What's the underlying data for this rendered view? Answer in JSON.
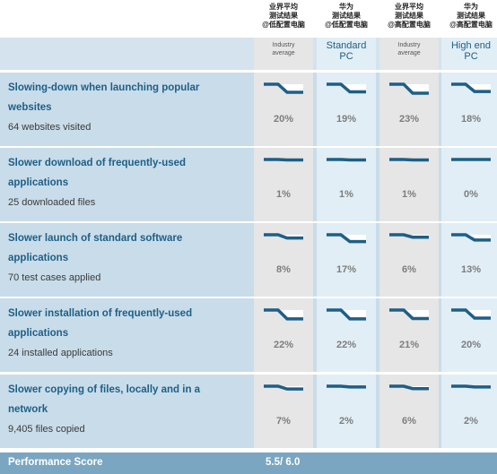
{
  "columns": [
    {
      "head": [
        "业界平均",
        "测试结果",
        "@低配置电脑"
      ],
      "sub": [
        "Industry",
        "average"
      ],
      "style": "grey"
    },
    {
      "head": [
        "华为",
        "测试结果",
        "@低配置电脑"
      ],
      "sub": [
        "Standard",
        "PC"
      ],
      "style": "blue"
    },
    {
      "head": [
        "业界平均",
        "测试结果",
        "@高配置电脑"
      ],
      "sub": [
        "Industry",
        "average"
      ],
      "style": "grey"
    },
    {
      "head": [
        "华为",
        "测试结果",
        "@高配置电脑"
      ],
      "sub": [
        "High end",
        "PC"
      ],
      "style": "blue"
    }
  ],
  "rows": [
    {
      "title": "Slowing-down when launching popular websites",
      "detail": "64 websites visited",
      "values": [
        "20%",
        "19%",
        "23%",
        "18%"
      ]
    },
    {
      "title": "Slower download of frequently-used applications",
      "detail": "25 downloaded files",
      "values": [
        "1%",
        "1%",
        "1%",
        "0%"
      ]
    },
    {
      "title": "Slower launch of standard software applications",
      "detail": "70 test cases applied",
      "values": [
        "8%",
        "17%",
        "6%",
        "13%"
      ]
    },
    {
      "title": "Slower installation of frequently-used applications",
      "detail": "24 installed applications",
      "values": [
        "22%",
        "22%",
        "21%",
        "20%"
      ]
    },
    {
      "title": "Slower copying of files, locally and in a network",
      "detail": "9,405 files copied",
      "values": [
        "7%",
        "2%",
        "6%",
        "2%"
      ]
    }
  ],
  "footer": {
    "label": "Performance Score",
    "score": "5.5/ 6.0"
  },
  "colors": {
    "accent": "#1d5f86",
    "row_bg": "#c9dcea",
    "grey_cell": "#e6e6e6",
    "blue_cell": "#e1eef5",
    "footer_bg": "#7aa6c2"
  },
  "chart_data": {
    "type": "table",
    "columns": [
      "业界平均 测试结果 @低配置电脑 Industry average",
      "华为 测试结果 @低配置电脑 Standard PC",
      "业界平均 测试结果 @高配置电脑 Industry average",
      "华为 测试结果 @高配置电脑 High end PC"
    ],
    "rows": [
      {
        "label": "Slowing-down when launching popular websites",
        "values": [
          20,
          19,
          23,
          18
        ]
      },
      {
        "label": "Slower download of frequently-used applications",
        "values": [
          1,
          1,
          1,
          0
        ]
      },
      {
        "label": "Slower launch of standard software applications",
        "values": [
          8,
          17,
          6,
          13
        ]
      },
      {
        "label": "Slower installation of frequently-used applications",
        "values": [
          22,
          22,
          21,
          20
        ]
      },
      {
        "label": "Slower copying of files, locally and in a network",
        "values": [
          7,
          2,
          6,
          2
        ]
      }
    ],
    "unit": "%"
  }
}
